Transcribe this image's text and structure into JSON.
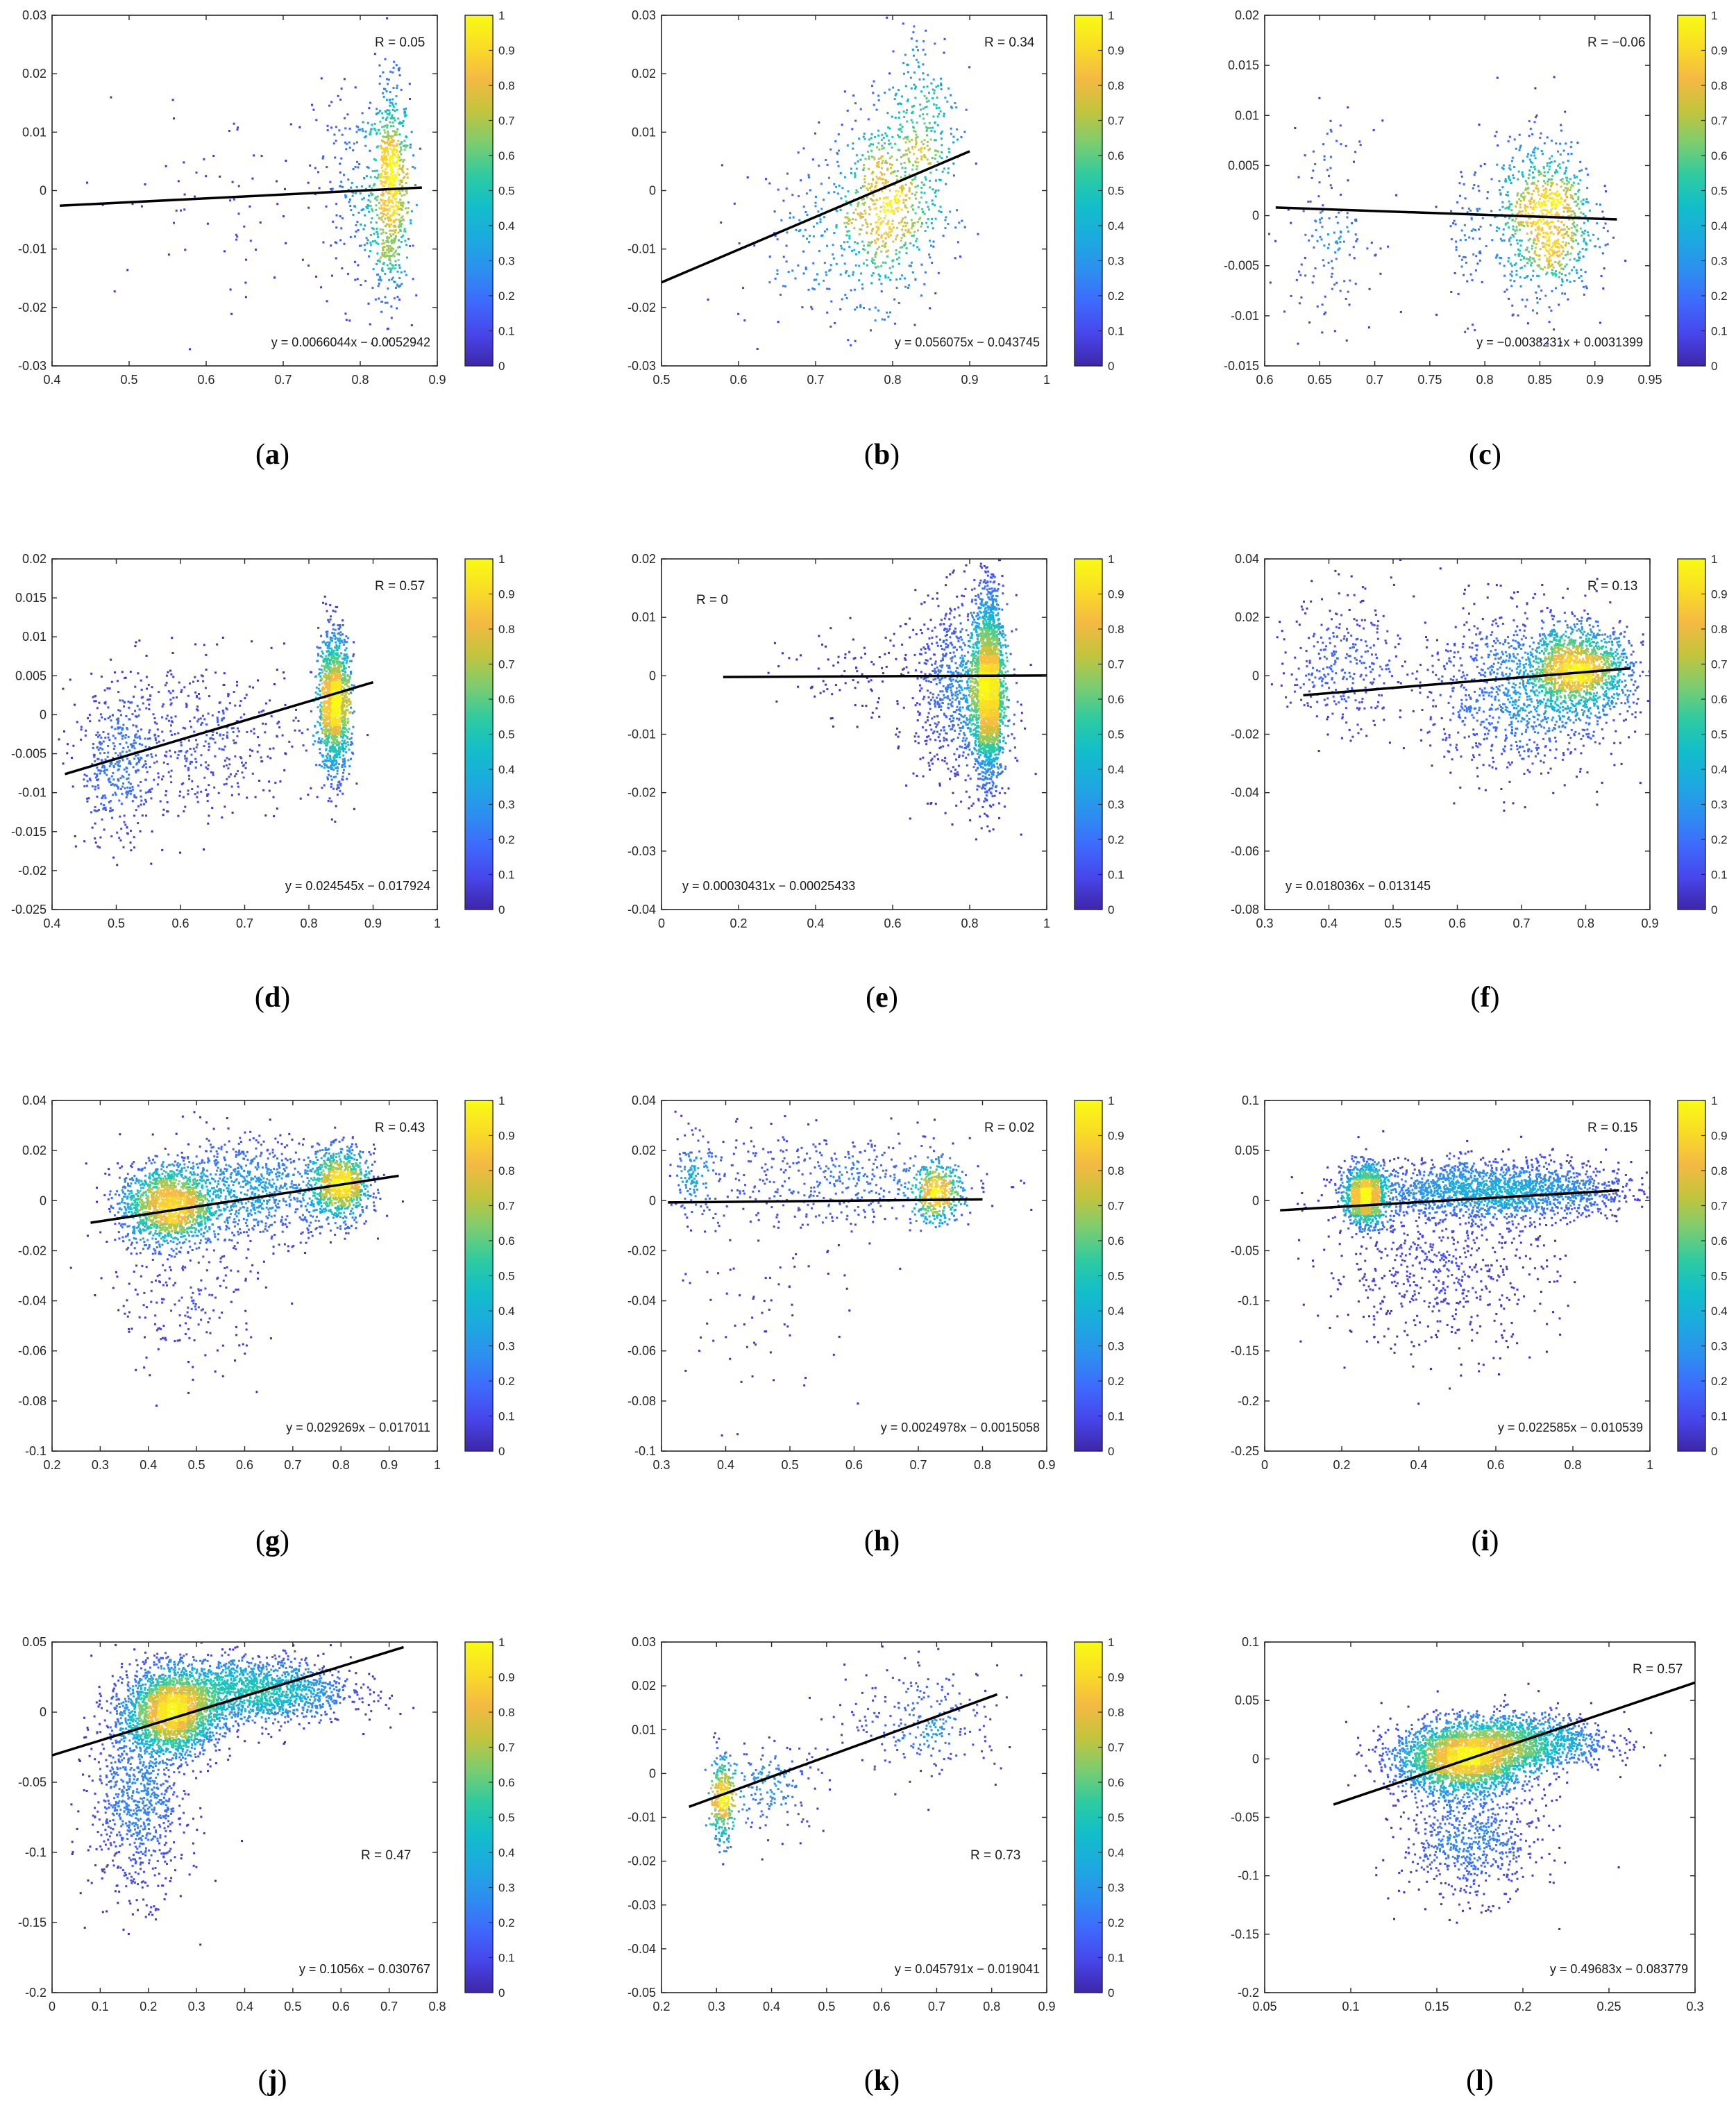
{
  "figure": {
    "colorbar_ticks": [
      "0",
      "0.1",
      "0.2",
      "0.3",
      "0.4",
      "0.5",
      "0.6",
      "0.7",
      "0.8",
      "0.9",
      "1"
    ],
    "colormap": [
      "#3e26a8",
      "#4746eb",
      "#3e6afd",
      "#2d8fef",
      "#1caadf",
      "#12bec9",
      "#2fcb9f",
      "#7ccd6e",
      "#c3c43c",
      "#f4b943",
      "#f9dc26",
      "#f9fb14"
    ],
    "fit_line_color": "#000000",
    "marker_color_rule": "point density (normalized 0-1)"
  },
  "chart_data": [
    {
      "type": "scatter",
      "label": "a",
      "panel_caption": "(a)",
      "R_text": "R = 0.05",
      "equation": "y = 0.0066044x − 0.0052942",
      "xlim": [
        0.4,
        0.9
      ],
      "ylim": [
        -0.03,
        0.03
      ],
      "xticks": [
        0.4,
        0.5,
        0.6,
        0.7,
        0.8,
        0.9
      ],
      "xtick_labels": [
        "0.4",
        "0.5",
        "0.6",
        "0.7",
        "0.8",
        "0.9"
      ],
      "yticks": [
        -0.03,
        -0.02,
        -0.01,
        0,
        0.01,
        0.02,
        0.03
      ],
      "ytick_labels": [
        "-0.03",
        "-0.02",
        "-0.01",
        "0",
        "0.01",
        "0.02",
        "0.03"
      ],
      "fit": {
        "slope": 0.0066044,
        "intercept": -0.0052942,
        "x_range": [
          0.41,
          0.88
        ]
      },
      "clusters": [
        {
          "cx": 0.84,
          "cy": 0.0,
          "sx": 0.012,
          "sy": 0.009,
          "n": 700
        },
        {
          "cx": 0.8,
          "cy": 0.0,
          "sx": 0.03,
          "sy": 0.01,
          "n": 250
        },
        {
          "cx": 0.62,
          "cy": -0.002,
          "sx": 0.09,
          "sy": 0.008,
          "n": 70
        }
      ],
      "colorbar": true,
      "r_pos": "top-right",
      "eq_pos": "bottom-right"
    },
    {
      "type": "scatter",
      "label": "b",
      "panel_caption": "(b)",
      "R_text": "R = 0.34",
      "equation": "y = 0.056075x − 0.043745",
      "xlim": [
        0.5,
        1
      ],
      "ylim": [
        -0.03,
        0.03
      ],
      "xticks": [
        0.5,
        0.6,
        0.7,
        0.8,
        0.9,
        1
      ],
      "xtick_labels": [
        "0.5",
        "0.6",
        "0.7",
        "0.8",
        "0.9",
        "1"
      ],
      "yticks": [
        -0.03,
        -0.02,
        -0.01,
        0,
        0.01,
        0.02,
        0.03
      ],
      "ytick_labels": [
        "-0.03",
        "-0.02",
        "-0.01",
        "0",
        "0.01",
        "0.02",
        "0.03"
      ],
      "fit": {
        "slope": 0.056075,
        "intercept": -0.043745,
        "x_range": [
          0.5,
          0.9
        ]
      },
      "clusters": [
        {
          "cx": 0.79,
          "cy": -0.003,
          "sx": 0.035,
          "sy": 0.008,
          "n": 650
        },
        {
          "cx": 0.84,
          "cy": 0.012,
          "sx": 0.025,
          "sy": 0.009,
          "n": 250
        },
        {
          "cx": 0.7,
          "cy": -0.008,
          "sx": 0.05,
          "sy": 0.008,
          "n": 150
        }
      ],
      "colorbar": true,
      "r_pos": "top-right",
      "eq_pos": "bottom-right"
    },
    {
      "type": "scatter",
      "label": "c",
      "panel_caption": "(c)",
      "R_text": "R = −0.06",
      "equation": "y = −0.0038231x + 0.0031399",
      "xlim": [
        0.6,
        0.95
      ],
      "ylim": [
        -0.015,
        0.02
      ],
      "xticks": [
        0.6,
        0.65,
        0.7,
        0.75,
        0.8,
        0.85,
        0.9,
        0.95
      ],
      "xtick_labels": [
        "0.6",
        "0.65",
        "0.7",
        "0.75",
        "0.8",
        "0.85",
        "0.9",
        "0.95"
      ],
      "yticks": [
        -0.015,
        -0.01,
        -0.005,
        0,
        0.005,
        0.01,
        0.015,
        0.02
      ],
      "ytick_labels": [
        "-0.015",
        "-0.01",
        "-0.005",
        "0",
        "0.005",
        "0.01",
        "0.015",
        "0.02"
      ],
      "fit": {
        "slope": -0.0038231,
        "intercept": 0.0031399,
        "x_range": [
          0.61,
          0.92
        ]
      },
      "clusters": [
        {
          "cx": 0.855,
          "cy": -0.0005,
          "sx": 0.022,
          "sy": 0.004,
          "n": 900
        },
        {
          "cx": 0.66,
          "cy": -0.001,
          "sx": 0.02,
          "sy": 0.005,
          "n": 150
        },
        {
          "cx": 0.785,
          "cy": -0.002,
          "sx": 0.012,
          "sy": 0.004,
          "n": 80
        }
      ],
      "colorbar": true,
      "r_pos": "top-right",
      "eq_pos": "bottom-right"
    },
    {
      "type": "scatter",
      "label": "d",
      "panel_caption": "(d)",
      "R_text": "R = 0.57",
      "equation": "y = 0.024545x − 0.017924",
      "xlim": [
        0.4,
        1
      ],
      "ylim": [
        -0.025,
        0.02
      ],
      "xticks": [
        0.4,
        0.5,
        0.6,
        0.7,
        0.8,
        0.9,
        1
      ],
      "xtick_labels": [
        "0.4",
        "0.5",
        "0.6",
        "0.7",
        "0.8",
        "0.9",
        "1"
      ],
      "yticks": [
        -0.025,
        -0.02,
        -0.015,
        -0.01,
        -0.005,
        0,
        0.005,
        0.01,
        0.015,
        0.02
      ],
      "ytick_labels": [
        "-0.025",
        "-0.02",
        "-0.015",
        "-0.01",
        "-0.005",
        "0",
        "0.005",
        "0.01",
        "0.015",
        "0.02"
      ],
      "fit": {
        "slope": 0.024545,
        "intercept": -0.017924,
        "x_range": [
          0.42,
          0.9
        ]
      },
      "clusters": [
        {
          "cx": 0.84,
          "cy": 0.0015,
          "sx": 0.012,
          "sy": 0.0045,
          "n": 1400
        },
        {
          "cx": 0.5,
          "cy": -0.007,
          "sx": 0.03,
          "sy": 0.005,
          "n": 350
        },
        {
          "cx": 0.63,
          "cy": -0.003,
          "sx": 0.09,
          "sy": 0.005,
          "n": 500
        }
      ],
      "colorbar": true,
      "r_pos": "top-right",
      "eq_pos": "bottom-right"
    },
    {
      "type": "scatter",
      "label": "e",
      "panel_caption": "(e)",
      "R_text": "R = 0",
      "equation": "y = 0.00030431x − 0.00025433",
      "xlim": [
        0,
        1
      ],
      "ylim": [
        -0.04,
        0.02
      ],
      "xticks": [
        0,
        0.2,
        0.4,
        0.6,
        0.8,
        1
      ],
      "xtick_labels": [
        "0",
        "0.2",
        "0.4",
        "0.6",
        "0.8",
        "1"
      ],
      "yticks": [
        -0.04,
        -0.03,
        -0.02,
        -0.01,
        0,
        0.01,
        0.02
      ],
      "ytick_labels": [
        "-0.04",
        "-0.03",
        "-0.02",
        "-0.01",
        "0",
        "0.01",
        "0.02"
      ],
      "fit": {
        "slope": 0.00030431,
        "intercept": -0.00025433,
        "x_range": [
          0.16,
          1.0
        ]
      },
      "clusters": [
        {
          "cx": 0.85,
          "cy": -0.002,
          "sx": 0.018,
          "sy": 0.008,
          "n": 2400
        },
        {
          "cx": 0.78,
          "cy": -0.003,
          "sx": 0.06,
          "sy": 0.008,
          "n": 900
        },
        {
          "cx": 0.55,
          "cy": 0.0,
          "sx": 0.12,
          "sy": 0.004,
          "n": 120
        }
      ],
      "colorbar": true,
      "r_pos": "top-left",
      "eq_pos": "bottom-left"
    },
    {
      "type": "scatter",
      "label": "f",
      "panel_caption": "(f)",
      "R_text": "R = 0.13",
      "equation": "y = 0.018036x − 0.013145",
      "xlim": [
        0.3,
        0.9
      ],
      "ylim": [
        -0.08,
        0.04
      ],
      "xticks": [
        0.3,
        0.4,
        0.5,
        0.6,
        0.7,
        0.8,
        0.9
      ],
      "xtick_labels": [
        "0.3",
        "0.4",
        "0.5",
        "0.6",
        "0.7",
        "0.8",
        "0.9"
      ],
      "yticks": [
        -0.08,
        -0.06,
        -0.04,
        -0.02,
        0,
        0.02,
        0.04
      ],
      "ytick_labels": [
        "-0.08",
        "-0.06",
        "-0.04",
        "-0.02",
        "0",
        "0.02",
        "0.04"
      ],
      "fit": {
        "slope": 0.018036,
        "intercept": -0.013145,
        "x_range": [
          0.36,
          0.87
        ]
      },
      "clusters": [
        {
          "cx": 0.79,
          "cy": 0.002,
          "sx": 0.04,
          "sy": 0.007,
          "n": 1400
        },
        {
          "cx": 0.7,
          "cy": -0.005,
          "sx": 0.08,
          "sy": 0.014,
          "n": 1100
        },
        {
          "cx": 0.42,
          "cy": 0.005,
          "sx": 0.04,
          "sy": 0.012,
          "n": 300
        }
      ],
      "colorbar": true,
      "r_pos": "top-right",
      "eq_pos": "bottom-left"
    },
    {
      "type": "scatter",
      "label": "g",
      "panel_caption": "(g)",
      "R_text": "R = 0.43",
      "equation": "y = 0.029269x − 0.017011",
      "xlim": [
        0.2,
        1
      ],
      "ylim": [
        -0.1,
        0.04
      ],
      "xticks": [
        0.2,
        0.3,
        0.4,
        0.5,
        0.6,
        0.7,
        0.8,
        0.9,
        1
      ],
      "xtick_labels": [
        "0.2",
        "0.3",
        "0.4",
        "0.5",
        "0.6",
        "0.7",
        "0.8",
        "0.9",
        "1"
      ],
      "yticks": [
        -0.1,
        -0.08,
        -0.06,
        -0.04,
        -0.02,
        0,
        0.02,
        0.04
      ],
      "ytick_labels": [
        "-0.1",
        "-0.08",
        "-0.06",
        "-0.04",
        "-0.02",
        "0",
        "0.02",
        "0.04"
      ],
      "fit": {
        "slope": 0.029269,
        "intercept": -0.017011,
        "x_range": [
          0.28,
          0.92
        ]
      },
      "clusters": [
        {
          "cx": 0.44,
          "cy": -0.002,
          "sx": 0.05,
          "sy": 0.008,
          "n": 1500
        },
        {
          "cx": 0.8,
          "cy": 0.006,
          "sx": 0.03,
          "sy": 0.007,
          "n": 900
        },
        {
          "cx": 0.62,
          "cy": 0.005,
          "sx": 0.1,
          "sy": 0.01,
          "n": 900
        },
        {
          "cx": 0.48,
          "cy": -0.04,
          "sx": 0.08,
          "sy": 0.015,
          "n": 200
        }
      ],
      "colorbar": true,
      "r_pos": "top-right",
      "eq_pos": "bottom-right"
    },
    {
      "type": "scatter",
      "label": "h",
      "panel_caption": "(h)",
      "R_text": "R = 0.02",
      "equation": "y = 0.0024978x − 0.0015058",
      "xlim": [
        0.3,
        0.9
      ],
      "ylim": [
        -0.1,
        0.04
      ],
      "xticks": [
        0.3,
        0.4,
        0.5,
        0.6,
        0.7,
        0.8,
        0.9
      ],
      "xtick_labels": [
        "0.3",
        "0.4",
        "0.5",
        "0.6",
        "0.7",
        "0.8",
        "0.9"
      ],
      "yticks": [
        -0.1,
        -0.08,
        -0.06,
        -0.04,
        -0.02,
        0,
        0.02,
        0.04
      ],
      "ytick_labels": [
        "-0.1",
        "-0.08",
        "-0.06",
        "-0.04",
        "-0.02",
        "0",
        "0.02",
        "0.04"
      ],
      "fit": {
        "slope": 0.0024978,
        "intercept": -0.0015058,
        "x_range": [
          0.31,
          0.8
        ]
      },
      "clusters": [
        {
          "cx": 0.73,
          "cy": 0.003,
          "sx": 0.02,
          "sy": 0.006,
          "n": 450
        },
        {
          "cx": 0.55,
          "cy": 0.008,
          "sx": 0.12,
          "sy": 0.01,
          "n": 450
        },
        {
          "cx": 0.35,
          "cy": 0.01,
          "sx": 0.012,
          "sy": 0.008,
          "n": 120
        },
        {
          "cx": 0.45,
          "cy": -0.045,
          "sx": 0.08,
          "sy": 0.02,
          "n": 70
        }
      ],
      "colorbar": true,
      "r_pos": "top-right",
      "eq_pos": "bottom-right"
    },
    {
      "type": "scatter",
      "label": "i",
      "panel_caption": "(i)",
      "R_text": "R = 0.15",
      "equation": "y = 0.022585x − 0.010539",
      "xlim": [
        0,
        1
      ],
      "ylim": [
        -0.25,
        0.1
      ],
      "xticks": [
        0,
        0.2,
        0.4,
        0.6,
        0.8,
        1
      ],
      "xtick_labels": [
        "0",
        "0.2",
        "0.4",
        "0.6",
        "0.8",
        "1"
      ],
      "yticks": [
        -0.25,
        -0.2,
        -0.15,
        -0.1,
        -0.05,
        0,
        0.05,
        0.1
      ],
      "ytick_labels": [
        "-0.25",
        "-0.2",
        "-0.15",
        "-0.1",
        "-0.05",
        "0",
        "0.05",
        "0.1"
      ],
      "fit": {
        "slope": 0.022585,
        "intercept": -0.010539,
        "x_range": [
          0.04,
          0.92
        ]
      },
      "clusters": [
        {
          "cx": 0.26,
          "cy": 0.005,
          "sx": 0.025,
          "sy": 0.015,
          "n": 1200
        },
        {
          "cx": 0.6,
          "cy": 0.01,
          "sx": 0.18,
          "sy": 0.015,
          "n": 2000
        },
        {
          "cx": 0.45,
          "cy": -0.07,
          "sx": 0.15,
          "sy": 0.04,
          "n": 600
        }
      ],
      "colorbar": true,
      "r_pos": "top-right",
      "eq_pos": "bottom-right"
    },
    {
      "type": "scatter",
      "label": "j",
      "panel_caption": "(j)",
      "R_text": "R = 0.47",
      "equation": "y = 0.1056x − 0.030767",
      "xlim": [
        0,
        0.8
      ],
      "ylim": [
        -0.2,
        0.05
      ],
      "xticks": [
        0,
        0.1,
        0.2,
        0.3,
        0.4,
        0.5,
        0.6,
        0.7,
        0.8
      ],
      "xtick_labels": [
        "0",
        "0.1",
        "0.2",
        "0.3",
        "0.4",
        "0.5",
        "0.6",
        "0.7",
        "0.8"
      ],
      "yticks": [
        -0.2,
        -0.15,
        -0.1,
        -0.05,
        0,
        0.05
      ],
      "ytick_labels": [
        "-0.2",
        "-0.15",
        "-0.1",
        "-0.05",
        "0",
        "0.05"
      ],
      "fit": {
        "slope": 0.1056,
        "intercept": -0.030767,
        "x_range": [
          0.0,
          0.73
        ]
      },
      "clusters": [
        {
          "cx": 0.25,
          "cy": 0.0,
          "sx": 0.05,
          "sy": 0.015,
          "n": 2200
        },
        {
          "cx": 0.42,
          "cy": 0.015,
          "sx": 0.1,
          "sy": 0.012,
          "n": 1600
        },
        {
          "cx": 0.18,
          "cy": -0.06,
          "sx": 0.05,
          "sy": 0.035,
          "n": 900
        }
      ],
      "colorbar": true,
      "r_pos": "mid-right",
      "eq_pos": "bottom-right"
    },
    {
      "type": "scatter",
      "label": "k",
      "panel_caption": "(k)",
      "R_text": "R = 0.73",
      "equation": "y = 0.045791x − 0.019041",
      "xlim": [
        0.2,
        0.9
      ],
      "ylim": [
        -0.05,
        0.03
      ],
      "xticks": [
        0.2,
        0.3,
        0.4,
        0.5,
        0.6,
        0.7,
        0.8,
        0.9
      ],
      "xtick_labels": [
        "0.2",
        "0.3",
        "0.4",
        "0.5",
        "0.6",
        "0.7",
        "0.8",
        "0.9"
      ],
      "yticks": [
        -0.05,
        -0.04,
        -0.03,
        -0.02,
        -0.01,
        0,
        0.01,
        0.02,
        0.03
      ],
      "ytick_labels": [
        "-0.05",
        "-0.04",
        "-0.03",
        "-0.02",
        "-0.01",
        "0",
        "0.01",
        "0.02",
        "0.03"
      ],
      "fit": {
        "slope": 0.045791,
        "intercept": -0.019041,
        "x_range": [
          0.25,
          0.81
        ]
      },
      "clusters": [
        {
          "cx": 0.31,
          "cy": -0.006,
          "sx": 0.01,
          "sy": 0.005,
          "n": 350
        },
        {
          "cx": 0.4,
          "cy": -0.003,
          "sx": 0.05,
          "sy": 0.005,
          "n": 180
        },
        {
          "cx": 0.68,
          "cy": 0.012,
          "sx": 0.07,
          "sy": 0.006,
          "n": 250
        }
      ],
      "colorbar": true,
      "r_pos": "mid-right",
      "eq_pos": "bottom-right"
    },
    {
      "type": "scatter",
      "label": "l",
      "panel_caption": "(l)",
      "R_text": "R = 0.57",
      "equation": "y = 0.49683x − 0.083779",
      "xlim": [
        0.05,
        0.3
      ],
      "ylim": [
        -0.2,
        0.1
      ],
      "xticks": [
        0.05,
        0.1,
        0.15,
        0.2,
        0.25,
        0.3
      ],
      "xtick_labels": [
        "0.05",
        "0.1",
        "0.15",
        "0.2",
        "0.25",
        "0.3"
      ],
      "yticks": [
        -0.2,
        -0.15,
        -0.1,
        -0.05,
        0,
        0.05,
        0.1
      ],
      "ytick_labels": [
        "-0.2",
        "-0.15",
        "-0.1",
        "-0.05",
        "0",
        "0.05",
        "0.1"
      ],
      "fit": {
        "slope": 0.49683,
        "intercept": -0.083779,
        "x_range": [
          0.09,
          0.3
        ]
      },
      "clusters": [
        {
          "cx": 0.165,
          "cy": 0.0,
          "sx": 0.02,
          "sy": 0.015,
          "n": 2500
        },
        {
          "cx": 0.2,
          "cy": 0.015,
          "sx": 0.025,
          "sy": 0.012,
          "n": 1200
        },
        {
          "cx": 0.17,
          "cy": -0.07,
          "sx": 0.02,
          "sy": 0.025,
          "n": 700
        }
      ],
      "colorbar": false,
      "r_pos": "top-right",
      "eq_pos": "bottom-right"
    }
  ]
}
